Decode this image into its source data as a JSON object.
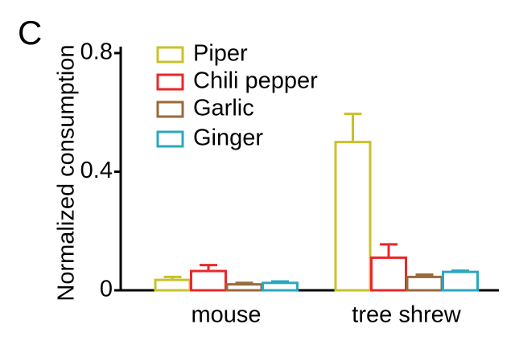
{
  "chart_data": {
    "type": "bar",
    "panel_label": "C",
    "y_label": "Normalized consumption",
    "categories": [
      "mouse",
      "tree shrew"
    ],
    "series": [
      {
        "name": "Piper",
        "color": "#c8c22a",
        "values": [
          0.035,
          0.5
        ],
        "errors": [
          0.01,
          0.095
        ]
      },
      {
        "name": "Chili pepper",
        "color": "#e8282a",
        "values": [
          0.065,
          0.11
        ],
        "errors": [
          0.02,
          0.045
        ]
      },
      {
        "name": "Garlic",
        "color": "#9a6a3a",
        "values": [
          0.02,
          0.045
        ],
        "errors": [
          0.005,
          0.008
        ]
      },
      {
        "name": "Ginger",
        "color": "#2aa8c0",
        "values": [
          0.025,
          0.062
        ],
        "errors": [
          0.005,
          0.004
        ]
      }
    ],
    "ylim": [
      0,
      0.8
    ],
    "yticks": [
      0,
      0.4,
      0.8
    ],
    "legend": "upper-left"
  }
}
